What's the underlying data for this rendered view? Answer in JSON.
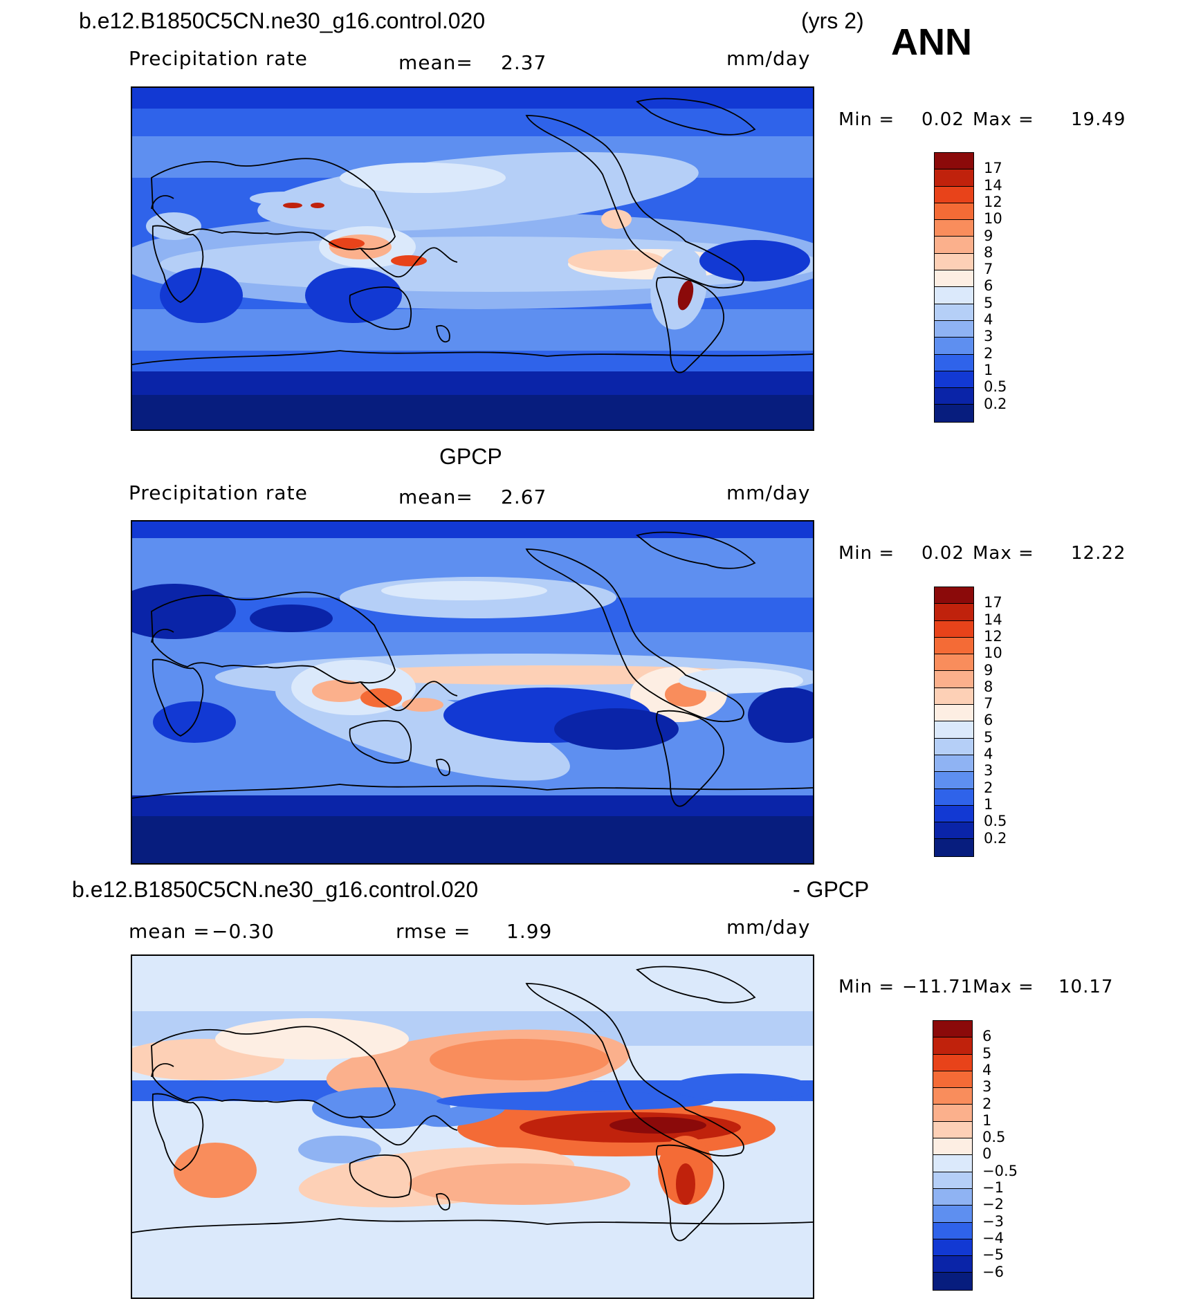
{
  "header": {
    "case_title": "b.e12.B1850C5CN.ne30_g16.control.020",
    "years": "(yrs 2)",
    "season": "ANN"
  },
  "chart_data": [
    {
      "type": "heatmap",
      "panel": "model",
      "title": "",
      "variable": "Precipitation rate",
      "mean_label": "mean=",
      "mean_value": "2.37",
      "units": "mm/day",
      "min_label": "Min =",
      "min_value": "0.02",
      "max_label": "Max =",
      "max_value": "19.49",
      "colorbar_levels": [
        "17",
        "14",
        "12",
        "10",
        "9",
        "8",
        "7",
        "6",
        "5",
        "4",
        "3",
        "2",
        "1",
        "0.5",
        "0.2"
      ],
      "colorbar_colors": [
        "#8b0a0a",
        "#c0220c",
        "#e8431a",
        "#f46b36",
        "#f98d5c",
        "#fbb08c",
        "#fdd0b6",
        "#fdeee3",
        "#dbe9fb",
        "#b5cff7",
        "#8fb3f3",
        "#5e8ff0",
        "#2f63ea",
        "#1239d3",
        "#0a24a8",
        "#071d7e"
      ]
    },
    {
      "type": "heatmap",
      "panel": "obs",
      "title": "GPCP",
      "variable": "Precipitation rate",
      "mean_label": "mean=",
      "mean_value": "2.67",
      "units": "mm/day",
      "min_label": "Min =",
      "min_value": "0.02",
      "max_label": "Max =",
      "max_value": "12.22",
      "colorbar_levels": [
        "17",
        "14",
        "12",
        "10",
        "9",
        "8",
        "7",
        "6",
        "5",
        "4",
        "3",
        "2",
        "1",
        "0.5",
        "0.2"
      ],
      "colorbar_colors": [
        "#8b0a0a",
        "#c0220c",
        "#e8431a",
        "#f46b36",
        "#f98d5c",
        "#fbb08c",
        "#fdd0b6",
        "#fdeee3",
        "#dbe9fb",
        "#b5cff7",
        "#8fb3f3",
        "#5e8ff0",
        "#2f63ea",
        "#1239d3",
        "#0a24a8",
        "#071d7e"
      ]
    },
    {
      "type": "heatmap",
      "panel": "difference",
      "title_left": "b.e12.B1850C5CN.ne30_g16.control.020",
      "title_right": "- GPCP",
      "mean_label": "mean =",
      "mean_value": "−0.30",
      "rmse_label": "rmse =",
      "rmse_value": "1.99",
      "units": "mm/day",
      "min_label": "Min =",
      "min_value": "−11.71",
      "max_label": "Max =",
      "max_value": "10.17",
      "colorbar_levels": [
        "6",
        "5",
        "4",
        "3",
        "2",
        "1",
        "0.5",
        "0",
        "−0.5",
        "−1",
        "−2",
        "−3",
        "−4",
        "−5",
        "−6"
      ],
      "colorbar_colors": [
        "#8b0a0a",
        "#c0220c",
        "#e8431a",
        "#f46b36",
        "#f98d5c",
        "#fbb08c",
        "#fdd0b6",
        "#fdeee3",
        "#dbe9fb",
        "#b5cff7",
        "#8fb3f3",
        "#5e8ff0",
        "#2f63ea",
        "#1239d3",
        "#0a24a8",
        "#071d7e"
      ]
    }
  ]
}
